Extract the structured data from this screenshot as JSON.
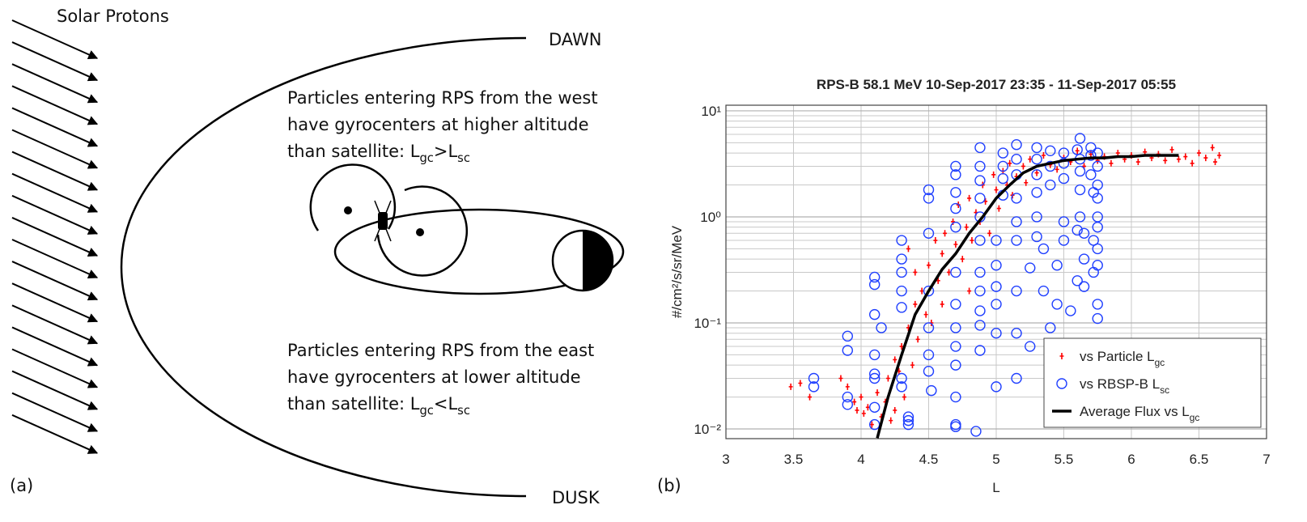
{
  "diagram": {
    "source_label": "Solar Protons",
    "dawn": "DAWN",
    "dusk": "DUSK",
    "panel_a": "(a)",
    "panel_b": "(b)",
    "west_text": [
      [
        "Particles entering RPS from the west"
      ],
      [
        "have gyrocenters at higher altitude"
      ],
      [
        "than satellite: L",
        "gc",
        ">L",
        "sc"
      ]
    ],
    "east_text": [
      [
        "Particles entering RPS from the east"
      ],
      [
        "have gyrocenters at lower altitude"
      ],
      [
        "than satellite: L",
        "gc",
        "<L",
        "sc"
      ]
    ]
  },
  "chart_data": {
    "type": "scatter",
    "title": "RPS-B 58.1 MeV 10-Sep-2017 23:35 - 11-Sep-2017 05:55",
    "xlabel": "L",
    "ylabel": "#/cm²/s/sr/MeV",
    "xlim": [
      3,
      7
    ],
    "ylim": [
      0.0081,
      11.3
    ],
    "yscale": "log",
    "grid": true,
    "legend": "lower right",
    "xticks": [
      3,
      3.5,
      4,
      4.5,
      5,
      5.5,
      6,
      6.5,
      7
    ],
    "yticks": [
      {
        "value": 0.01,
        "label": "10⁻²"
      },
      {
        "value": 0.1,
        "label": "10⁻¹"
      },
      {
        "value": 1,
        "label": "10⁰"
      },
      {
        "value": 10,
        "label": "10¹"
      }
    ],
    "minor_yticks": [
      0.02,
      0.03,
      0.04,
      0.05,
      0.06,
      0.07,
      0.08,
      0.09,
      0.2,
      0.3,
      0.4,
      0.5,
      0.6,
      0.7,
      0.8,
      0.9,
      2,
      3,
      4,
      5,
      6,
      7,
      8,
      9
    ],
    "series": [
      {
        "name": [
          "vs Particle L",
          "gc"
        ],
        "color": "#ff0000",
        "marker": "plus",
        "x": [
          3.48,
          3.55,
          3.62,
          3.85,
          3.9,
          3.95,
          3.97,
          4.0,
          4.02,
          4.05,
          4.08,
          4.12,
          4.15,
          4.18,
          4.2,
          4.22,
          4.25,
          4.28,
          4.3,
          4.32,
          4.35,
          4.38,
          4.4,
          4.42,
          4.45,
          4.48,
          4.5,
          4.52,
          4.55,
          4.57,
          4.6,
          4.62,
          4.65,
          4.68,
          4.7,
          4.72,
          4.75,
          4.78,
          4.8,
          4.82,
          4.85,
          4.88,
          4.9,
          4.92,
          4.95,
          4.98,
          5.0,
          5.02,
          5.05,
          5.08,
          5.1,
          5.12,
          5.15,
          5.2,
          5.22,
          5.25,
          5.3,
          5.35,
          5.4,
          5.45,
          5.5,
          5.55,
          5.6,
          5.65,
          5.7,
          5.75,
          5.8,
          5.85,
          5.9,
          5.95,
          6.0,
          6.05,
          6.1,
          6.15,
          6.2,
          6.25,
          6.3,
          6.35,
          6.4,
          6.45,
          6.5,
          6.55,
          6.6,
          6.62,
          6.65,
          4.35,
          4.4,
          4.6,
          4.8,
          4.25
        ],
        "values": [
          0.025,
          0.027,
          0.02,
          0.03,
          0.025,
          0.018,
          0.015,
          0.02,
          0.014,
          0.016,
          0.011,
          0.022,
          0.013,
          0.018,
          0.03,
          0.012,
          0.045,
          0.035,
          0.06,
          0.02,
          0.09,
          0.04,
          0.15,
          0.07,
          0.2,
          0.12,
          0.35,
          0.1,
          0.6,
          0.25,
          0.45,
          0.7,
          0.3,
          0.9,
          0.55,
          1.3,
          0.4,
          0.8,
          1.5,
          0.6,
          1.1,
          0.9,
          2.0,
          1.4,
          0.7,
          2.5,
          1.8,
          1.2,
          2.7,
          2.0,
          3.2,
          1.6,
          2.4,
          3.0,
          2.1,
          3.5,
          2.6,
          3.8,
          3.1,
          2.8,
          3.6,
          3.3,
          4.2,
          3.0,
          3.9,
          3.4,
          3.7,
          3.2,
          4.0,
          3.5,
          3.8,
          3.3,
          4.1,
          3.6,
          3.9,
          3.4,
          4.3,
          3.5,
          3.7,
          3.2,
          4.0,
          3.6,
          4.5,
          3.3,
          3.8,
          0.5,
          0.3,
          0.15,
          0.2,
          0.015
        ]
      },
      {
        "name": [
          "vs RBSP-B L",
          "sc"
        ],
        "color": "#1f3fff",
        "marker": "circle",
        "x": [
          3.65,
          3.65,
          3.9,
          3.9,
          3.9,
          3.9,
          4.1,
          4.1,
          4.1,
          4.1,
          4.1,
          4.1,
          4.1,
          4.1,
          4.15,
          4.3,
          4.3,
          4.3,
          4.3,
          4.3,
          4.3,
          4.3,
          4.35,
          4.35,
          4.35,
          4.5,
          4.5,
          4.5,
          4.5,
          4.5,
          4.5,
          4.5,
          4.52,
          4.7,
          4.7,
          4.7,
          4.7,
          4.7,
          4.7,
          4.7,
          4.7,
          4.7,
          4.7,
          4.7,
          4.7,
          4.7,
          4.88,
          4.88,
          4.88,
          4.88,
          4.88,
          4.88,
          4.88,
          4.88,
          4.88,
          4.88,
          4.88,
          4.85,
          5.0,
          5.0,
          5.0,
          5.0,
          5.0,
          5.0,
          5.05,
          5.05,
          5.05,
          5.05,
          5.15,
          5.15,
          5.15,
          5.15,
          5.15,
          5.15,
          5.15,
          5.15,
          5.15,
          5.25,
          5.25,
          5.3,
          5.3,
          5.3,
          5.3,
          5.3,
          5.3,
          5.35,
          5.35,
          5.4,
          5.4,
          5.4,
          5.4,
          5.45,
          5.45,
          5.5,
          5.5,
          5.5,
          5.5,
          5.55,
          5.6,
          5.6,
          5.62,
          5.62,
          5.62,
          5.62,
          5.62,
          5.65,
          5.65,
          5.65,
          5.7,
          5.7,
          5.7,
          5.72,
          5.72,
          5.72,
          5.75,
          5.75,
          5.75,
          5.75,
          5.75,
          5.75,
          5.75,
          5.75,
          5.75,
          5.75,
          5.6,
          5.5
        ],
        "values": [
          0.03,
          0.025,
          0.075,
          0.055,
          0.02,
          0.017,
          0.27,
          0.23,
          0.12,
          0.05,
          0.033,
          0.03,
          0.016,
          0.011,
          0.09,
          0.6,
          0.4,
          0.3,
          0.2,
          0.14,
          0.03,
          0.025,
          0.013,
          0.012,
          0.011,
          1.8,
          1.5,
          0.7,
          0.2,
          0.09,
          0.05,
          0.035,
          0.023,
          3.0,
          2.5,
          1.7,
          1.2,
          0.8,
          0.3,
          0.15,
          0.09,
          0.06,
          0.04,
          0.02,
          0.011,
          0.0105,
          4.5,
          3.0,
          2.2,
          1.5,
          1.0,
          0.6,
          0.3,
          0.2,
          0.13,
          0.095,
          0.055,
          0.0095,
          0.6,
          0.35,
          0.22,
          0.15,
          0.08,
          0.025,
          4.0,
          3.0,
          2.3,
          1.6,
          4.8,
          3.5,
          2.5,
          1.5,
          0.9,
          0.6,
          0.2,
          0.08,
          0.03,
          0.33,
          0.06,
          4.5,
          3.5,
          2.5,
          1.7,
          1.0,
          0.65,
          0.5,
          0.2,
          4.2,
          3.0,
          2.0,
          0.09,
          0.35,
          0.15,
          4.0,
          3.2,
          2.3,
          0.6,
          0.13,
          4.3,
          0.25,
          5.5,
          3.5,
          2.7,
          1.8,
          1.0,
          0.7,
          0.4,
          0.22,
          4.5,
          3.8,
          2.5,
          1.7,
          0.6,
          0.3,
          4.0,
          3.0,
          2.0,
          1.5,
          1.0,
          0.8,
          0.5,
          0.35,
          0.15,
          0.11,
          0.75,
          0.9
        ]
      },
      {
        "name": [
          "Average Flux vs L",
          "gc"
        ],
        "color": "#000000",
        "marker": "line",
        "x": [
          4.12,
          4.2,
          4.3,
          4.4,
          4.5,
          4.6,
          4.7,
          4.8,
          4.9,
          5.0,
          5.1,
          5.2,
          5.3,
          5.4,
          5.5,
          5.6,
          5.7,
          5.8,
          5.9,
          6.0,
          6.1,
          6.2,
          6.3,
          6.35
        ],
        "values": [
          0.0082,
          0.02,
          0.05,
          0.12,
          0.2,
          0.32,
          0.45,
          0.7,
          1.0,
          1.5,
          2.0,
          2.6,
          3.0,
          3.2,
          3.4,
          3.5,
          3.6,
          3.6,
          3.7,
          3.7,
          3.8,
          3.8,
          3.8,
          3.8
        ]
      }
    ]
  }
}
